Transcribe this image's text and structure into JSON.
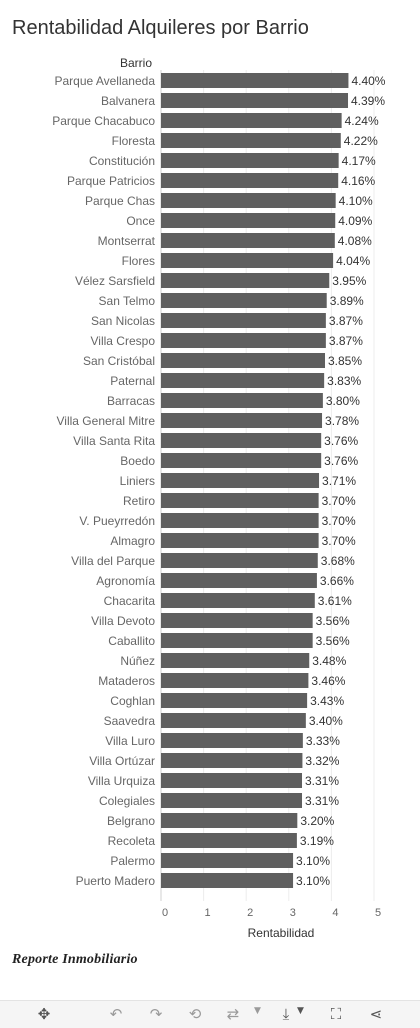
{
  "title": "Rentabilidad Alquileres por Barrio",
  "logo_text": "Reporte Inmobiliario",
  "chart_data": {
    "type": "bar",
    "orientation": "horizontal",
    "row_header": "Barrio",
    "xlabel": "Rentabilidad",
    "xlim": [
      0,
      5
    ],
    "x_ticks": [
      "0",
      "1",
      "2",
      "3",
      "4",
      "5"
    ],
    "bar_color": "#5f5f5f",
    "categories": [
      "Parque Avellaneda",
      "Balvanera",
      "Parque Chacabuco",
      "Floresta",
      "Constitución",
      "Parque Patricios",
      "Parque Chas",
      "Once",
      "Montserrat",
      "Flores",
      "Vélez Sarsfield",
      "San Telmo",
      "San Nicolas",
      "Villa Crespo",
      "San Cristóbal",
      "Paternal",
      "Barracas",
      "Villa General Mitre",
      "Villa Santa Rita",
      "Boedo",
      "Liniers",
      "Retiro",
      "V. Pueyrredón",
      "Almagro",
      "Villa del Parque",
      "Agronomía",
      "Chacarita",
      "Villa Devoto",
      "Caballito",
      "Núñez",
      "Mataderos",
      "Coghlan",
      "Saavedra",
      "Villa Luro",
      "Villa Ortúzar",
      "Villa Urquiza",
      "Colegiales",
      "Belgrano",
      "Recoleta",
      "Palermo",
      "Puerto Madero"
    ],
    "values": [
      4.4,
      4.39,
      4.24,
      4.22,
      4.17,
      4.16,
      4.1,
      4.09,
      4.08,
      4.04,
      3.95,
      3.89,
      3.87,
      3.87,
      3.85,
      3.83,
      3.8,
      3.78,
      3.76,
      3.76,
      3.71,
      3.7,
      3.7,
      3.7,
      3.68,
      3.66,
      3.61,
      3.56,
      3.56,
      3.48,
      3.46,
      3.43,
      3.4,
      3.33,
      3.32,
      3.31,
      3.31,
      3.2,
      3.19,
      3.1,
      3.1
    ],
    "value_labels": [
      "4.40%",
      "4.39%",
      "4.24%",
      "4.22%",
      "4.17%",
      "4.16%",
      "4.10%",
      "4.09%",
      "4.08%",
      "4.04%",
      "3.95%",
      "3.89%",
      "3.87%",
      "3.87%",
      "3.85%",
      "3.83%",
      "3.80%",
      "3.78%",
      "3.76%",
      "3.76%",
      "3.71%",
      "3.70%",
      "3.70%",
      "3.70%",
      "3.68%",
      "3.66%",
      "3.61%",
      "3.56%",
      "3.56%",
      "3.48%",
      "3.46%",
      "3.43%",
      "3.40%",
      "3.33%",
      "3.32%",
      "3.31%",
      "3.31%",
      "3.20%",
      "3.19%",
      "3.10%",
      "3.10%"
    ]
  },
  "toolbar": {
    "buttons": [
      {
        "name": "move-icon",
        "glyph": "✥",
        "enabled": true
      },
      {
        "name": "undo-icon",
        "glyph": "↶",
        "enabled": false
      },
      {
        "name": "redo-icon",
        "glyph": "↷",
        "enabled": false
      },
      {
        "name": "revert-icon",
        "glyph": "⟲",
        "enabled": false
      },
      {
        "name": "refresh-icon",
        "glyph": "⇄",
        "enabled": false
      },
      {
        "name": "download-icon",
        "glyph": "⤓",
        "enabled": true
      },
      {
        "name": "fullscreen-icon",
        "glyph": "⛶",
        "enabled": true
      },
      {
        "name": "share-icon",
        "glyph": "⋖",
        "enabled": true
      }
    ]
  }
}
